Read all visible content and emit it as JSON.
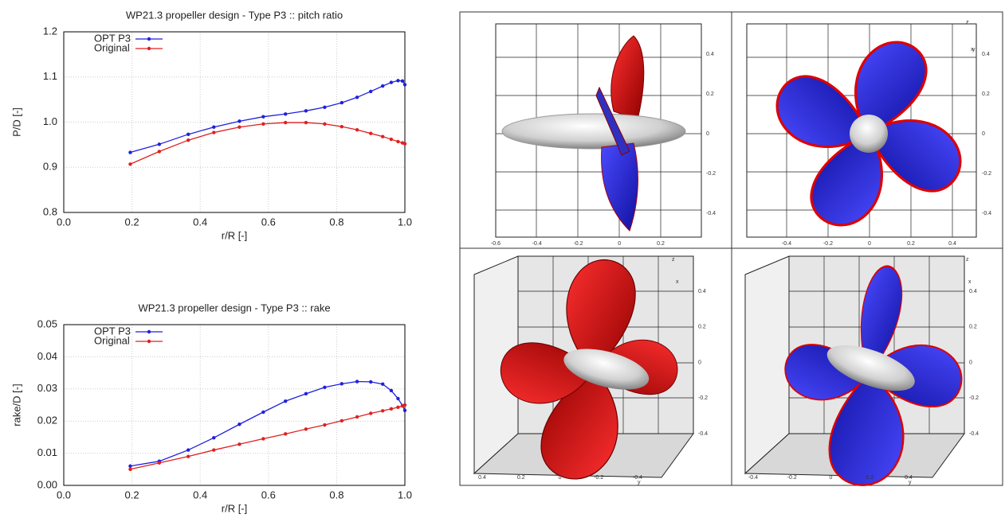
{
  "chart_data": [
    {
      "type": "line",
      "title": "WP21.3 propeller design - Type P3 :: pitch ratio",
      "x_label": "r/R [-]",
      "y_label": "P/D [-]",
      "x": [
        0.195,
        0.28,
        0.365,
        0.44,
        0.515,
        0.585,
        0.65,
        0.71,
        0.765,
        0.815,
        0.86,
        0.9,
        0.935,
        0.96,
        0.98,
        0.993,
        1.0
      ],
      "series": [
        {
          "name": "OPT P3",
          "color": "#1f1fe0",
          "values": [
            0.933,
            0.951,
            0.973,
            0.989,
            1.002,
            1.012,
            1.018,
            1.025,
            1.033,
            1.043,
            1.055,
            1.068,
            1.08,
            1.088,
            1.092,
            1.091,
            1.083
          ]
        },
        {
          "name": "Original",
          "color": "#e02020",
          "values": [
            0.907,
            0.935,
            0.96,
            0.977,
            0.989,
            0.996,
            0.999,
            0.999,
            0.996,
            0.99,
            0.983,
            0.975,
            0.968,
            0.962,
            0.957,
            0.954,
            0.952
          ]
        }
      ],
      "xlim": [
        0,
        1
      ],
      "xticks": [
        {
          "value": 0,
          "label": "0.0"
        },
        0.2,
        0.4,
        0.6,
        0.8,
        {
          "value": 1,
          "label": "1.0"
        }
      ],
      "ylim": [
        0.8,
        1.2
      ],
      "yticks": [
        0.8,
        0.9,
        {
          "value": 1,
          "label": "1.0"
        },
        1.1,
        1.2
      ],
      "grid": true,
      "legend": "upper left"
    },
    {
      "type": "line",
      "title": "WP21.3 propeller design - Type P3 :: rake",
      "x_label": "r/R [-]",
      "y_label": "rake/D [-]",
      "x": [
        0.195,
        0.28,
        0.365,
        0.44,
        0.515,
        0.585,
        0.65,
        0.71,
        0.765,
        0.815,
        0.86,
        0.9,
        0.935,
        0.96,
        0.98,
        0.993,
        1.0
      ],
      "series": [
        {
          "name": "OPT P3",
          "color": "#1f1fe0",
          "values": [
            0.006,
            0.0075,
            0.011,
            0.0148,
            0.019,
            0.0228,
            0.0262,
            0.0285,
            0.0305,
            0.0316,
            0.0323,
            0.0322,
            0.0315,
            0.0295,
            0.027,
            0.0248,
            0.0233
          ]
        },
        {
          "name": "Original",
          "color": "#e02020",
          "values": [
            0.005,
            0.007,
            0.009,
            0.011,
            0.0128,
            0.0145,
            0.016,
            0.0175,
            0.0188,
            0.0201,
            0.0213,
            0.0224,
            0.0232,
            0.0238,
            0.0243,
            0.0247,
            0.025
          ]
        }
      ],
      "xlim": [
        0,
        1
      ],
      "xticks": [
        {
          "value": 0,
          "label": "0.0"
        },
        0.2,
        0.4,
        0.6,
        0.8,
        {
          "value": 1,
          "label": "1.0"
        }
      ],
      "ylim": [
        0,
        0.05
      ],
      "yticks": [
        {
          "value": 0,
          "label": "0.00"
        },
        {
          "value": 0.01,
          "label": "0.01"
        },
        {
          "value": 0.02,
          "label": "0.02"
        },
        {
          "value": 0.03,
          "label": "0.03"
        },
        {
          "value": 0.04,
          "label": "0.04"
        },
        {
          "value": 0.05,
          "label": "0.05"
        }
      ],
      "grid": true,
      "legend": "upper left"
    }
  ],
  "render_views": [
    {
      "y_labels": [
        "0.4",
        "0.2",
        "0",
        "-0.2",
        "-0.4"
      ],
      "x_labels": [
        "-0.6",
        "-0.4",
        "-0.2",
        "0",
        "0.2"
      ],
      "axis_letters": [
        "z",
        "x"
      ]
    },
    {
      "y_labels": [
        "0.4",
        "0.2",
        "0",
        "-0.2",
        "-0.4"
      ],
      "x_labels": [
        "-0.4",
        "-0.2",
        "0",
        "0.2",
        "0.4"
      ],
      "axis_letters": [
        "z",
        "y"
      ]
    },
    {
      "y_labels": [
        "0.4",
        "0.2",
        "0",
        "-0.2",
        "-0.4"
      ],
      "x_labels": [
        "0.4",
        "0.2",
        "0",
        "-0.2",
        "-0.4"
      ],
      "axis_letters": [
        "z",
        "x",
        "y"
      ]
    },
    {
      "y_labels": [
        "0.4",
        "0.2",
        "0",
        "-0.2",
        "-0.4"
      ],
      "x_labels": [
        "-0.4",
        "-0.2",
        "0",
        "0.2",
        "0.4"
      ],
      "axis_letters": [
        "z",
        "x",
        "y"
      ]
    }
  ]
}
